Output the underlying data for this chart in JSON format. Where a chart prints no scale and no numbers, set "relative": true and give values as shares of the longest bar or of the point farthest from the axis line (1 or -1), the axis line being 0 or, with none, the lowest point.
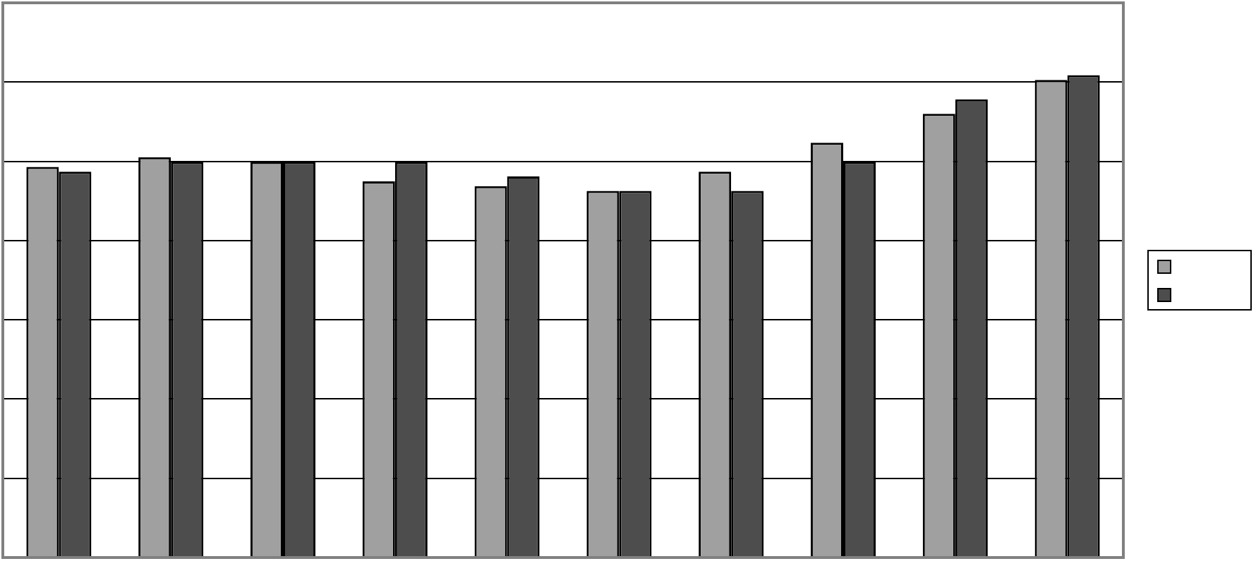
{
  "chart_data": {
    "type": "bar",
    "relative": true,
    "categories": [
      null,
      null,
      null,
      null,
      null,
      null,
      null,
      null,
      null,
      null
    ],
    "series": [
      {
        "color": "#a0a0a0",
        "values": [
          0.81,
          0.83,
          0.82,
          0.78,
          0.77,
          0.76,
          0.8,
          0.86,
          0.92,
          0.99
        ]
      },
      {
        "color": "#4d4d4d",
        "values": [
          0.8,
          0.82,
          0.82,
          0.82,
          0.79,
          0.76,
          0.76,
          0.82,
          0.95,
          1
        ]
      }
    ],
    "grid": "y"
  }
}
